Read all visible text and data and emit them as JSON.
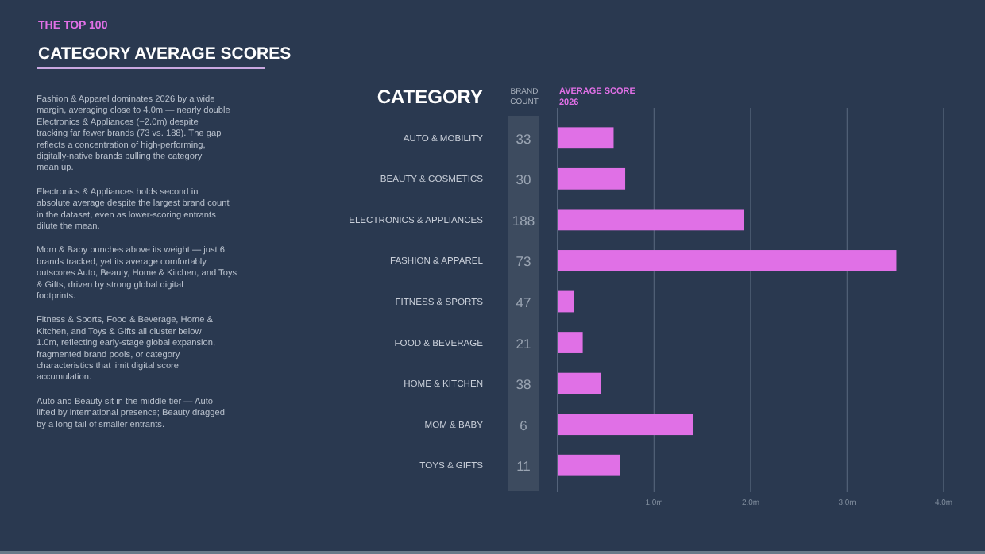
{
  "chart_data": {
    "type": "bar",
    "orientation": "horizontal",
    "subtitle": "THE TOP 100",
    "title": "CATEGORY AVERAGE SCORES",
    "ylabel": "CATEGORY",
    "xlabel": "AVERAGE SCORE 2026",
    "categories": [
      "AUTO & MOBILITY",
      "BEAUTY & COSMETICS",
      "ELECTRONICS & APPLIANCES",
      "FASHION & APPAREL",
      "FITNESS & SPORTS",
      "FOOD & BEVERAGE",
      "HOME & KITCHEN",
      "MOM & BABY",
      "TOYS & GIFTS"
    ],
    "values": [
      0.58,
      0.7,
      1.93,
      3.51,
      0.17,
      0.26,
      0.45,
      1.4,
      0.65
    ],
    "color": "#e070e6",
    "xlim": [
      0,
      4
    ],
    "xticks": [
      {
        "value": 1,
        "label": "1.0m"
      },
      {
        "value": 2,
        "label": "2.0m"
      },
      {
        "value": 3,
        "label": "3.0m"
      },
      {
        "value": 4,
        "label": "4.0m"
      }
    ],
    "grid": "x",
    "annotations": [
      "Fashion & Apparel dominates 2026 by a wide margin, averaging close to 4.0m — nearly double Electronics & Appliances (~2.0m) despite tracking far fewer brands (73 vs. 188). The gap reflects a concentration of high-performing, digitally-native brands pulling the category mean up.",
      "Electronics & Appliances holds second in absolute average despite the largest brand count in the dataset, even as lower-scoring entrants dilute the mean.",
      "Mom & Baby punches above its weight — just 6 brands tracked, yet its average comfortably outscores Auto, Beauty, Home & Kitchen, and Toys & Gifts, driven by strong global digital footprints.",
      "Fitness & Sports, Food & Beverage, Home & Kitchen, and Toys & Gifts all cluster below 1.0m, reflecting early-stage global expansion, fragmented brand pools, or category characteristics that limit digital score accumulation.",
      "Auto and Beauty sit in the middle tier — Auto lifted by international presence; Beauty dragged by a long tail of smaller entrants.",
      "BRAND COUNT",
      "33",
      "30",
      "188",
      "73",
      "47",
      "21",
      "38",
      "6",
      "11"
    ]
  }
}
